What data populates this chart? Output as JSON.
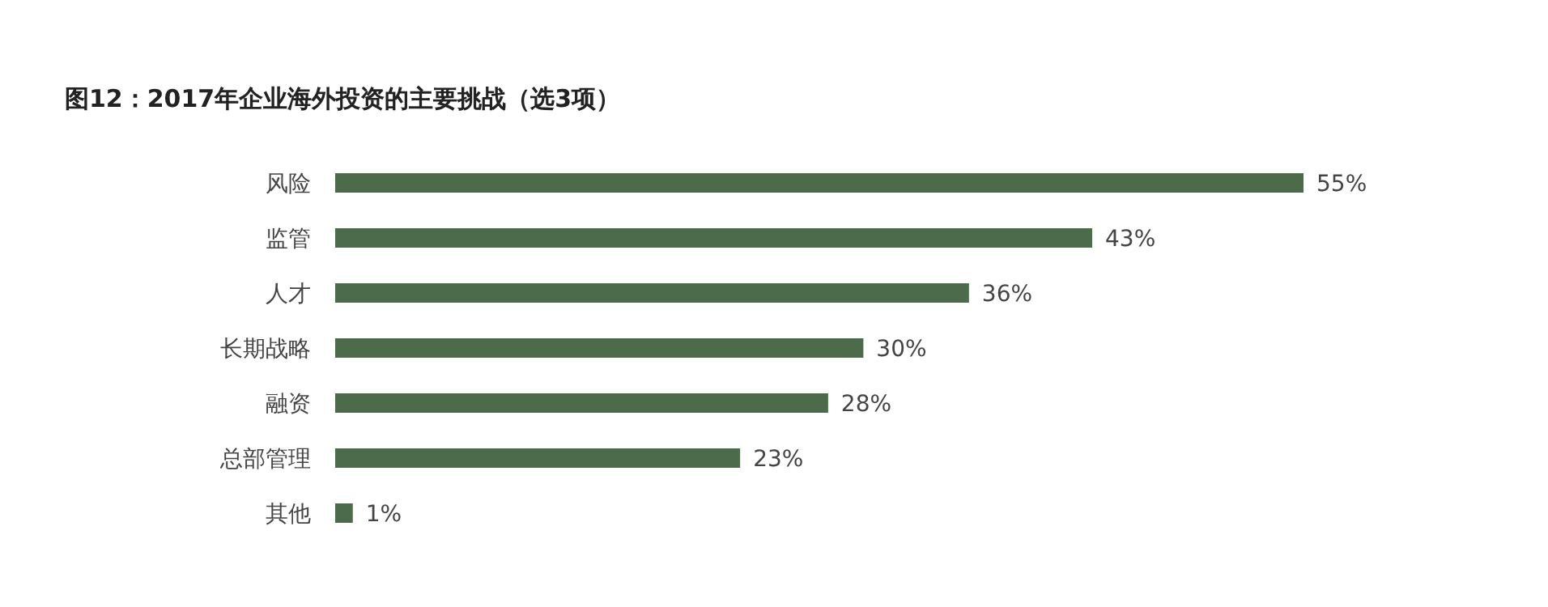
{
  "chart_data": {
    "type": "bar",
    "orientation": "horizontal",
    "title": "图12：2017年企业海外投资的主要挑战（选3项）",
    "categories": [
      "风险",
      "监管",
      "人才",
      "长期战略",
      "融资",
      "总部管理",
      "其他"
    ],
    "values": [
      55,
      43,
      36,
      30,
      28,
      23,
      1
    ],
    "value_labels": [
      "55%",
      "43%",
      "36%",
      "30%",
      "28%",
      "23%",
      "1%"
    ],
    "color": "#4b6b4b"
  }
}
